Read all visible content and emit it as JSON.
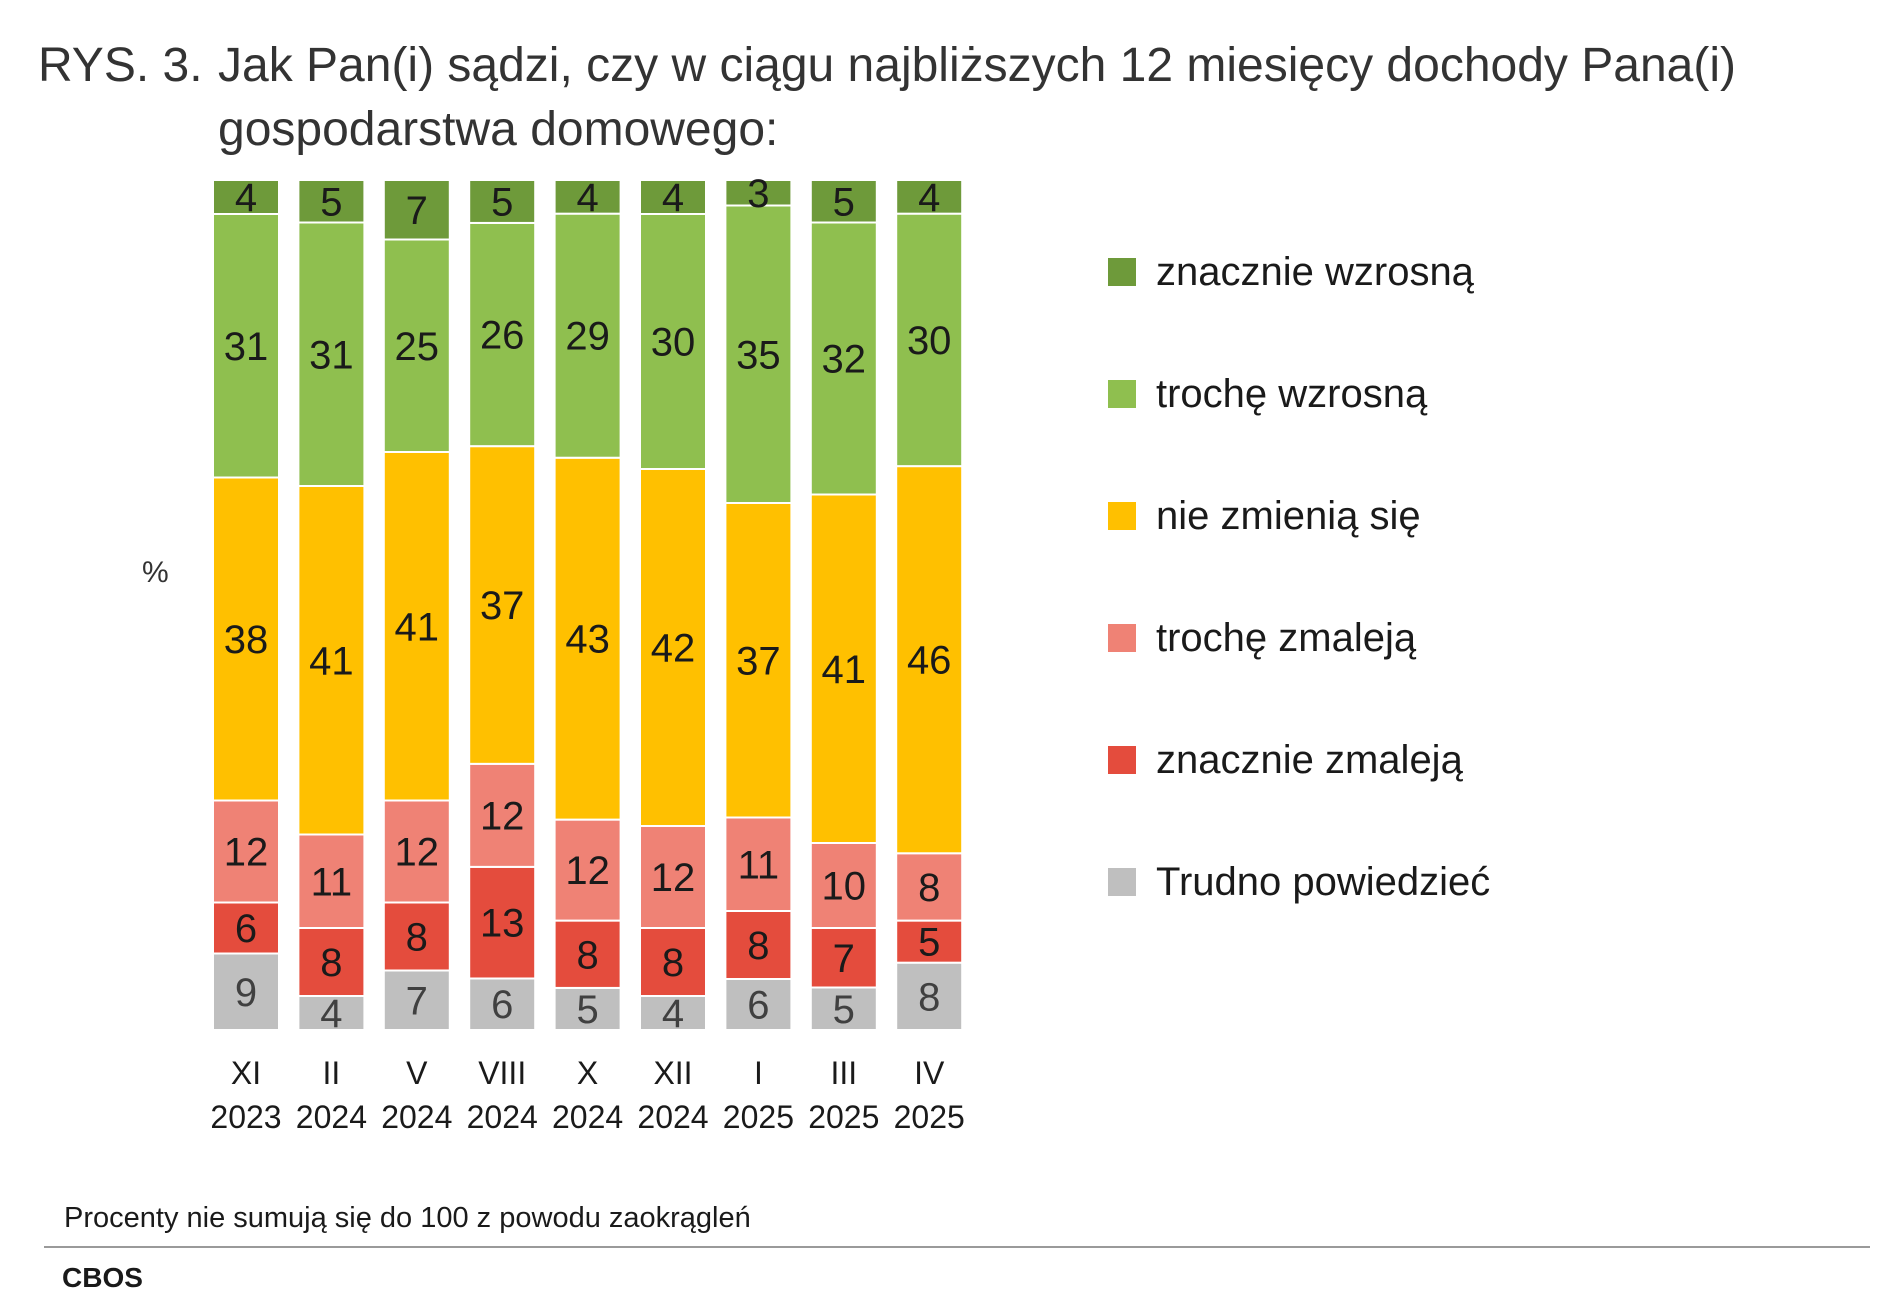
{
  "header": {
    "title_prefix": "RYS. 3.",
    "title_line1": "Jak Pan(i) sądzi, czy w ciągu najbliższych 12 miesięcy dochody Pana(i)",
    "title_line2": "gospodarstwa domowego:"
  },
  "footer": {
    "note": "Procenty nie sumują się do 100 z powodu zaokrągleń",
    "source": "CBOS"
  },
  "chart_data": {
    "type": "bar",
    "stacked": true,
    "ylabel": "%",
    "categories": [
      {
        "line1": "XI",
        "line2": "2023"
      },
      {
        "line1": "II",
        "line2": "2024"
      },
      {
        "line1": "V",
        "line2": "2024"
      },
      {
        "line1": "VIII",
        "line2": "2024"
      },
      {
        "line1": "X",
        "line2": "2024"
      },
      {
        "line1": "XII",
        "line2": "2024"
      },
      {
        "line1": "I",
        "line2": "2025"
      },
      {
        "line1": "III",
        "line2": "2025"
      },
      {
        "line1": "IV",
        "line2": "2025"
      }
    ],
    "series": [
      {
        "name": "Trudno powiedzieć",
        "color": "#bfbfbf",
        "label_color": "#404040",
        "values": [
          9,
          4,
          7,
          6,
          5,
          4,
          6,
          5,
          8
        ]
      },
      {
        "name": "znacznie zmaleją",
        "color": "#e44c3d",
        "label_color": "#1a1a1a",
        "values": [
          6,
          8,
          8,
          13,
          8,
          8,
          8,
          7,
          5
        ]
      },
      {
        "name": "trochę zmaleją",
        "color": "#ef8275",
        "label_color": "#1a1a1a",
        "values": [
          12,
          11,
          12,
          12,
          12,
          12,
          11,
          10,
          8
        ]
      },
      {
        "name": "nie zmienią się",
        "color": "#ffc000",
        "label_color": "#1a1a1a",
        "values": [
          38,
          41,
          41,
          37,
          43,
          42,
          37,
          41,
          46
        ]
      },
      {
        "name": "trochę wzrosną",
        "color": "#8fbf4f",
        "label_color": "#1a1a1a",
        "values": [
          31,
          31,
          25,
          26,
          29,
          30,
          35,
          32,
          30
        ]
      },
      {
        "name": "znacznie wzrosną",
        "color": "#6e9a3a",
        "label_color": "#1a1a1a",
        "values": [
          4,
          5,
          7,
          5,
          4,
          4,
          3,
          5,
          4
        ]
      }
    ],
    "legend_order": [
      "znacznie wzrosną",
      "trochę wzrosną",
      "nie zmienią się",
      "trochę zmaleją",
      "znacznie zmaleją",
      "Trudno powiedzieć"
    ],
    "legend_position": "right",
    "grid": false
  }
}
